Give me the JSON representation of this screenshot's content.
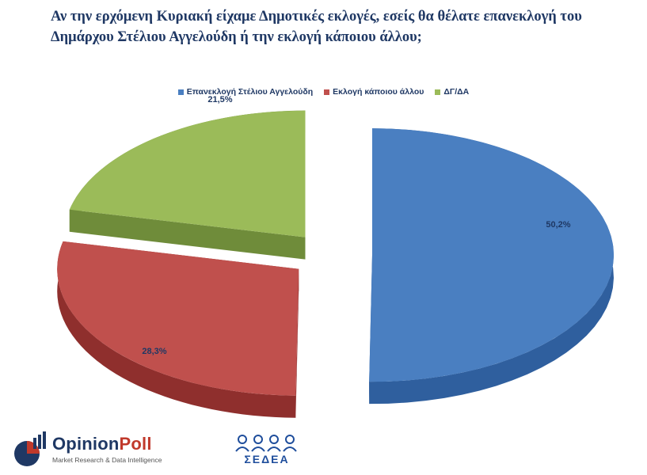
{
  "title": {
    "line1": "Αν την ερχόμενη Κυριακή είχαμε Δημοτικές εκλογές, εσείς θα θέλατε επανεκλογή του",
    "line2": "Δημάρχου Στέλιου Αγγελούδη ή την εκλογή κάποιου άλλου;"
  },
  "chart_data": {
    "type": "pie",
    "style": "3d-exploded",
    "legend_position": "top",
    "categories": [
      "Επανεκλογή Στέλιου Αγγελούδη",
      "Εκλογή κάποιου άλλου",
      "ΔΓ/ΔΑ"
    ],
    "values": [
      50.2,
      28.3,
      21.5
    ],
    "data_labels": [
      "50,2%",
      "28,3%",
      "21,5%"
    ],
    "colors": [
      "#4a7fc1",
      "#c0504d",
      "#9bbb59"
    ],
    "side_colors": [
      "#2f5f9e",
      "#8f2f2d",
      "#6f8c3a"
    ]
  },
  "logos": {
    "opinionpoll": {
      "brand_prefix": "Opinion",
      "brand_suffix": "Poll",
      "tagline": "Market Research & Data Intelligence"
    },
    "sedea": {
      "text": "ΣΕΔΕΑ"
    }
  }
}
